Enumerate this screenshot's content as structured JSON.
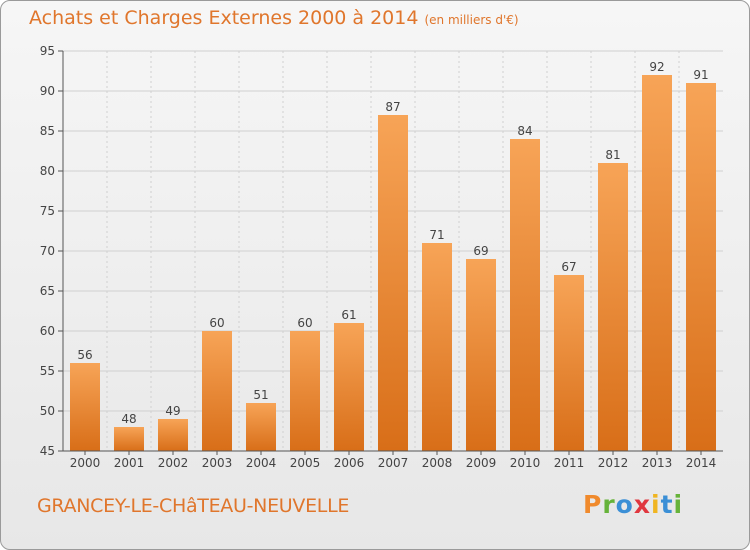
{
  "header": {
    "title": "Achats et Charges Externes 2000 à 2014",
    "unit": "(en milliers d'€)"
  },
  "footer": {
    "commune": "GRANCEY-LE-CHâTEAU-NEUVELLE",
    "logo_text": "Proxiti"
  },
  "colors": {
    "title": "#e0762c",
    "bar_light": "#f7a457",
    "bar_dark": "#d86e18",
    "axis": "#555555",
    "grid": "#d0d0d0"
  },
  "chart_data": {
    "type": "bar",
    "title": "Achats et Charges Externes 2000 à 2014",
    "subtitle": "(en milliers d'€)",
    "categories": [
      "2000",
      "2001",
      "2002",
      "2003",
      "2004",
      "2005",
      "2006",
      "2007",
      "2008",
      "2009",
      "2010",
      "2011",
      "2012",
      "2013",
      "2014"
    ],
    "values": [
      56,
      48,
      49,
      60,
      51,
      60,
      61,
      87,
      71,
      69,
      84,
      67,
      81,
      92,
      91
    ],
    "ylim": [
      45,
      95
    ],
    "yticks": [
      45,
      50,
      55,
      60,
      65,
      70,
      75,
      80,
      85,
      90,
      95
    ],
    "grid": true,
    "data_labels": true
  }
}
